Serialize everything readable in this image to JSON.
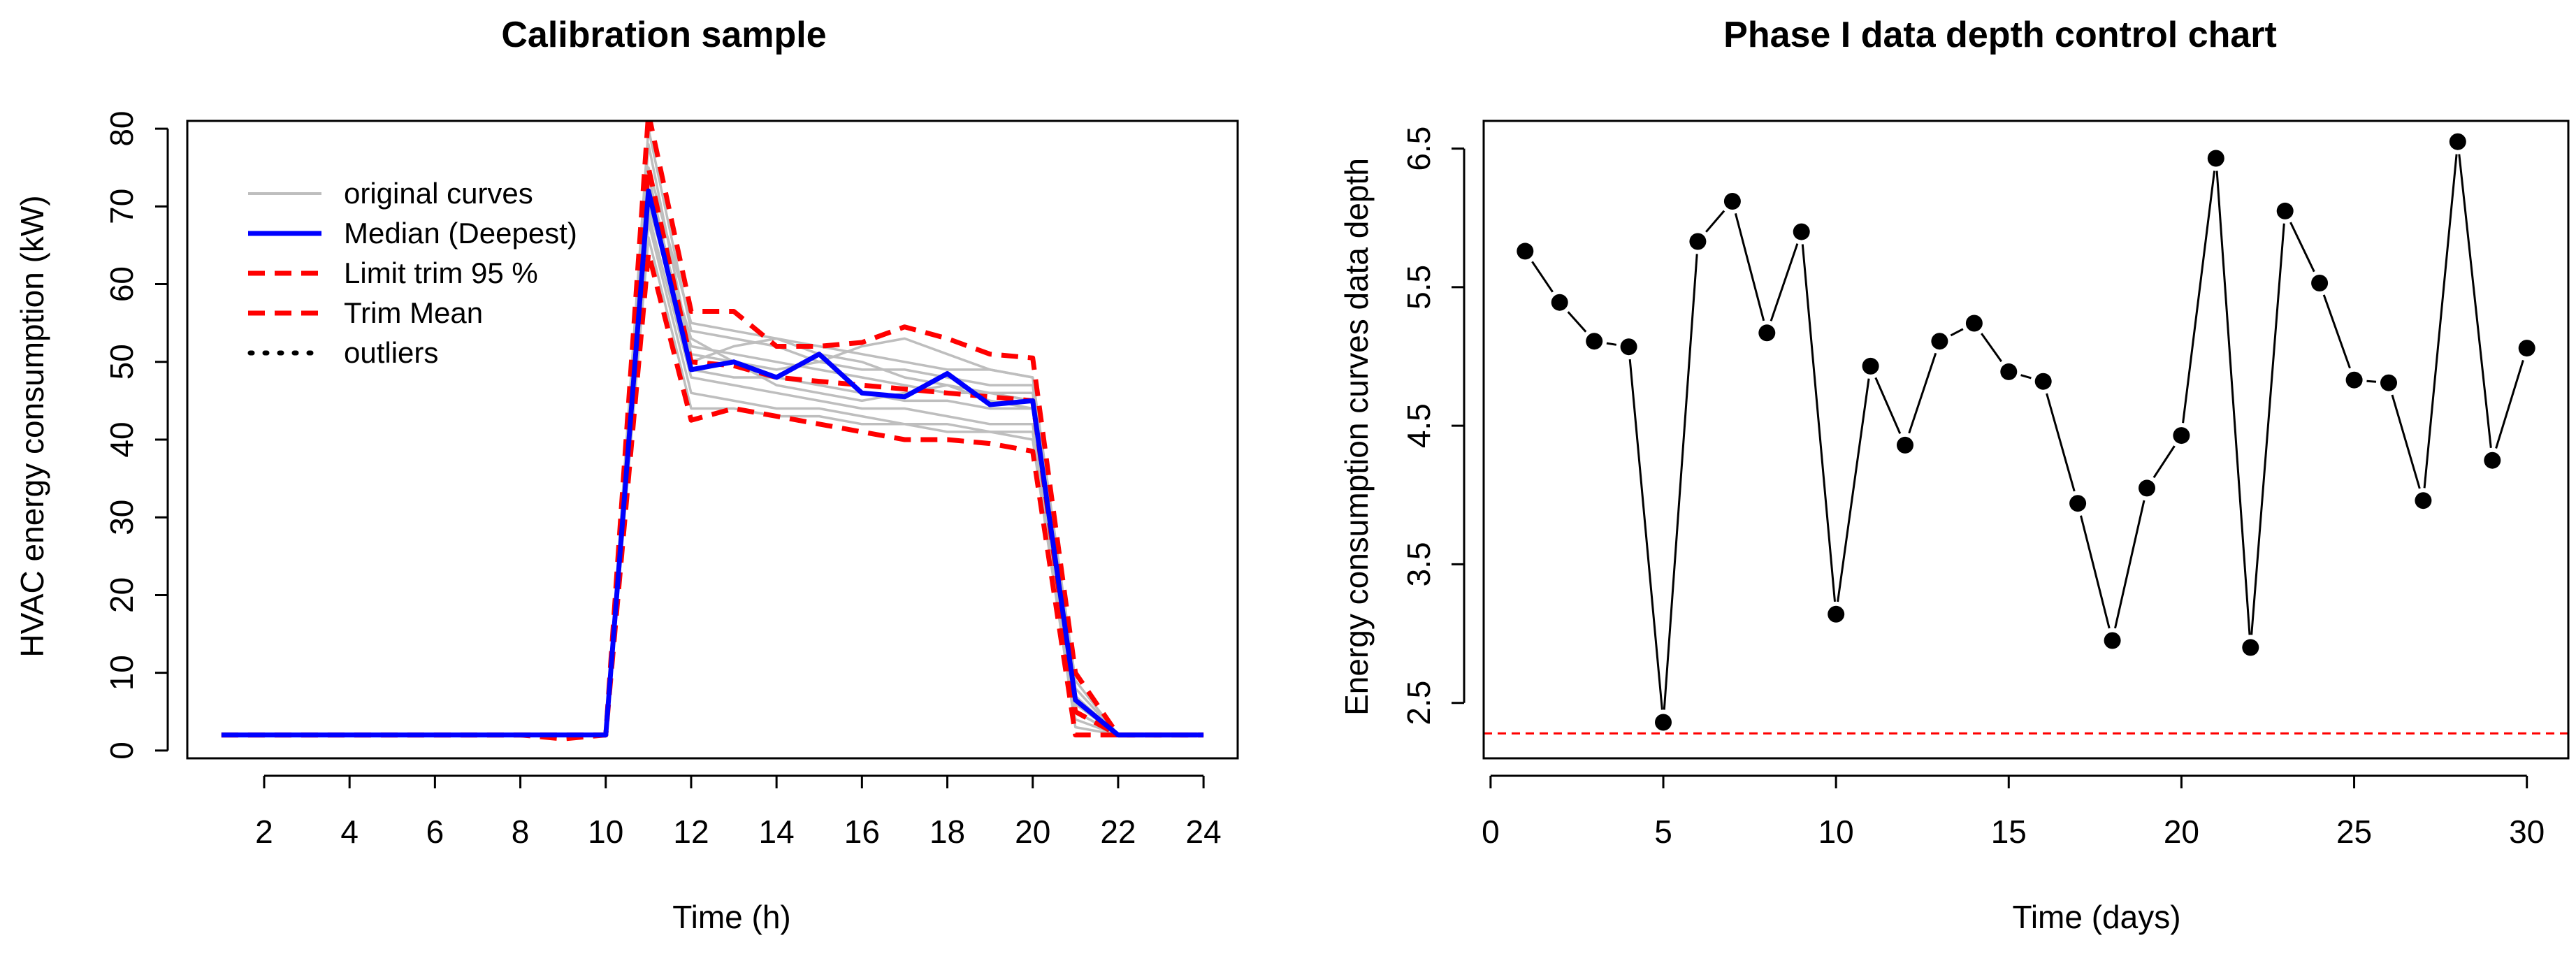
{
  "chart_data": [
    {
      "type": "line",
      "title": "Calibration sample",
      "xlabel": "Time (h)",
      "ylabel": "HVAC energy consumption (kW)",
      "xlim": [
        0.2,
        24.8
      ],
      "ylim": [
        -1,
        81
      ],
      "xticks": [
        2,
        4,
        6,
        8,
        10,
        12,
        14,
        16,
        18,
        20,
        22,
        24
      ],
      "yticks": [
        0,
        10,
        20,
        30,
        40,
        50,
        60,
        70,
        80
      ],
      "legend": {
        "placement": "top-left",
        "entries": [
          {
            "label": "original curves",
            "color": "#bebebe",
            "style": "solid"
          },
          {
            "label": "Median (Deepest)",
            "color": "#0000ff",
            "style": "solid"
          },
          {
            "label": "Limit trim 95 %",
            "color": "#ff0000",
            "style": "dashed"
          },
          {
            "label": "Trim Mean",
            "color": "#ff0000",
            "style": "dashed"
          },
          {
            "label": "outliers",
            "color": "#000000",
            "style": "dotted"
          }
        ]
      },
      "series": [
        {
          "name": "original curve",
          "color": "#bebebe",
          "x": [
            1,
            2,
            3,
            4,
            5,
            6,
            7,
            8,
            9,
            10,
            11,
            12,
            13,
            14,
            15,
            16,
            17,
            18,
            19,
            20,
            21,
            22,
            23,
            24
          ],
          "values": [
            2,
            2,
            2,
            2,
            2,
            2,
            2,
            2,
            2,
            2,
            70,
            52,
            51,
            50,
            49,
            48,
            47,
            46,
            46,
            45,
            5,
            2,
            2,
            2
          ]
        },
        {
          "name": "original curve",
          "color": "#bebebe",
          "x": [
            1,
            2,
            3,
            4,
            5,
            6,
            7,
            8,
            9,
            10,
            11,
            12,
            13,
            14,
            15,
            16,
            17,
            18,
            19,
            20,
            21,
            22,
            23,
            24
          ],
          "values": [
            2,
            2,
            2,
            2,
            2,
            2,
            2,
            2,
            2,
            2,
            75,
            55,
            54,
            53,
            52,
            51,
            50,
            49,
            49,
            48,
            7,
            2,
            2,
            2
          ]
        },
        {
          "name": "original curve",
          "color": "#bebebe",
          "x": [
            1,
            2,
            3,
            4,
            5,
            6,
            7,
            8,
            9,
            10,
            11,
            12,
            13,
            14,
            15,
            16,
            17,
            18,
            19,
            20,
            21,
            22,
            23,
            24
          ],
          "values": [
            2,
            2,
            2,
            2,
            2,
            2,
            2,
            2,
            2,
            2,
            68,
            46,
            45,
            44,
            44,
            43,
            42,
            42,
            41,
            41,
            4,
            2,
            2,
            2
          ]
        },
        {
          "name": "original curve",
          "color": "#bebebe",
          "x": [
            1,
            2,
            3,
            4,
            5,
            6,
            7,
            8,
            9,
            10,
            11,
            12,
            13,
            14,
            15,
            16,
            17,
            18,
            19,
            20,
            21,
            22,
            23,
            24
          ],
          "values": [
            2,
            2,
            2,
            2,
            2,
            2,
            2,
            2,
            2,
            2,
            80,
            54,
            53,
            52,
            50,
            49,
            49,
            48,
            47,
            47,
            8,
            2,
            2,
            2
          ]
        },
        {
          "name": "original curve",
          "color": "#bebebe",
          "x": [
            1,
            2,
            3,
            4,
            5,
            6,
            7,
            8,
            9,
            10,
            11,
            12,
            13,
            14,
            15,
            16,
            17,
            18,
            19,
            20,
            21,
            22,
            23,
            24
          ],
          "values": [
            2,
            2,
            2,
            2,
            2,
            2,
            2,
            2,
            2,
            2,
            72,
            49,
            48,
            48,
            47,
            46,
            45,
            45,
            44,
            44,
            6,
            2,
            2,
            2
          ]
        },
        {
          "name": "original curve",
          "color": "#bebebe",
          "x": [
            1,
            2,
            3,
            4,
            5,
            6,
            7,
            8,
            9,
            10,
            11,
            12,
            13,
            14,
            15,
            16,
            17,
            18,
            19,
            20,
            21,
            22,
            23,
            24
          ],
          "values": [
            2,
            2,
            2,
            2,
            2,
            2,
            2,
            2,
            2,
            2,
            74,
            50,
            52,
            53,
            51,
            50,
            48,
            47,
            46,
            46,
            5,
            2,
            2,
            2
          ]
        },
        {
          "name": "original curve",
          "color": "#bebebe",
          "x": [
            1,
            2,
            3,
            4,
            5,
            6,
            7,
            8,
            9,
            10,
            11,
            12,
            13,
            14,
            15,
            16,
            17,
            18,
            19,
            20,
            21,
            22,
            23,
            24
          ],
          "values": [
            2,
            2,
            2,
            2,
            2,
            2,
            2,
            2,
            2,
            2,
            66,
            44,
            44,
            43,
            43,
            42,
            42,
            41,
            41,
            40,
            3,
            2,
            2,
            2
          ]
        },
        {
          "name": "original curve",
          "color": "#bebebe",
          "x": [
            1,
            2,
            3,
            4,
            5,
            6,
            7,
            8,
            9,
            10,
            11,
            12,
            13,
            14,
            15,
            16,
            17,
            18,
            19,
            20,
            21,
            22,
            23,
            24
          ],
          "values": [
            2,
            2,
            2,
            2,
            2,
            2,
            2,
            2,
            2,
            2,
            78,
            51,
            50,
            49,
            50,
            52,
            53,
            51,
            49,
            48,
            9,
            2,
            2,
            2
          ]
        },
        {
          "name": "original curve",
          "color": "#bebebe",
          "x": [
            1,
            2,
            3,
            4,
            5,
            6,
            7,
            8,
            9,
            10,
            11,
            12,
            13,
            14,
            15,
            16,
            17,
            18,
            19,
            20,
            21,
            22,
            23,
            24
          ],
          "values": [
            2,
            2,
            2,
            2,
            2,
            2,
            2,
            2,
            2,
            2,
            71,
            53,
            50,
            47,
            46,
            45,
            46,
            47,
            45,
            44,
            6,
            2,
            2,
            2
          ]
        },
        {
          "name": "original curve",
          "color": "#bebebe",
          "x": [
            1,
            2,
            3,
            4,
            5,
            6,
            7,
            8,
            9,
            10,
            11,
            12,
            13,
            14,
            15,
            16,
            17,
            18,
            19,
            20,
            21,
            22,
            23,
            24
          ],
          "values": [
            2,
            2,
            2,
            2,
            2,
            2,
            2,
            2,
            2,
            2,
            69,
            48,
            47,
            46,
            45,
            44,
            44,
            43,
            42,
            42,
            5,
            2,
            2,
            2
          ]
        },
        {
          "name": "Median (Deepest)",
          "color": "#0000ff",
          "x": [
            1,
            2,
            3,
            4,
            5,
            6,
            7,
            8,
            9,
            10,
            11,
            12,
            13,
            14,
            15,
            16,
            17,
            18,
            19,
            20,
            21,
            22,
            23,
            24
          ],
          "values": [
            2,
            2,
            2,
            2,
            2,
            2,
            2,
            2,
            2,
            2,
            72,
            49,
            50,
            48,
            51,
            46,
            45.5,
            48.5,
            44.5,
            45,
            6.5,
            2,
            2,
            2
          ]
        },
        {
          "name": "Limit trim 95 % (upper)",
          "color": "#ff0000",
          "x": [
            1,
            2,
            3,
            4,
            5,
            6,
            7,
            8,
            9,
            10,
            11,
            12,
            13,
            14,
            15,
            16,
            17,
            18,
            19,
            20,
            21,
            22,
            23,
            24
          ],
          "values": [
            2,
            2,
            2,
            2,
            2,
            2,
            2,
            2,
            2,
            2,
            82,
            56.5,
            56.5,
            52,
            52,
            52.5,
            54.5,
            53,
            51,
            50.5,
            10,
            2,
            2,
            2
          ]
        },
        {
          "name": "Limit trim 95 % (lower)",
          "color": "#ff0000",
          "x": [
            1,
            2,
            3,
            4,
            5,
            6,
            7,
            8,
            9,
            10,
            11,
            12,
            13,
            14,
            15,
            16,
            17,
            18,
            19,
            20,
            21,
            22,
            23,
            24
          ],
          "values": [
            2,
            2,
            2,
            2,
            2,
            2,
            2,
            2,
            1.5,
            2,
            64,
            42.5,
            44,
            43,
            42,
            41,
            40,
            40,
            39.5,
            38.5,
            2,
            2,
            2,
            2
          ]
        },
        {
          "name": "Trim Mean",
          "color": "#ff0000",
          "x": [
            1,
            2,
            3,
            4,
            5,
            6,
            7,
            8,
            9,
            10,
            11,
            12,
            13,
            14,
            15,
            16,
            17,
            18,
            19,
            20,
            21,
            22,
            23,
            24
          ],
          "values": [
            2,
            2,
            2,
            2,
            2,
            2,
            2,
            2,
            2,
            2,
            75,
            50,
            49.5,
            48,
            47.5,
            47,
            46.5,
            46,
            45.5,
            45,
            5,
            2,
            2,
            2
          ]
        }
      ]
    },
    {
      "type": "line",
      "title": "Phase I data depth control chart",
      "xlabel": "Time (days)",
      "ylabel": "Energy consumption curves data depth",
      "xlim": [
        -0.2,
        31.2
      ],
      "ylim": [
        2.1,
        6.7
      ],
      "xticks": [
        0,
        5,
        10,
        15,
        20,
        25,
        30
      ],
      "yticks": [
        2.5,
        3.5,
        4.5,
        5.5,
        6.5
      ],
      "control_limit": {
        "value": 2.28,
        "color": "#ff0000",
        "style": "dashed"
      },
      "x": [
        1,
        2,
        3,
        4,
        5,
        6,
        7,
        8,
        9,
        10,
        11,
        12,
        13,
        14,
        15,
        16,
        17,
        18,
        19,
        20,
        21,
        22,
        23,
        24,
        25,
        26,
        27,
        28,
        29,
        30
      ],
      "values": [
        5.76,
        5.39,
        5.11,
        5.07,
        2.36,
        5.83,
        6.12,
        5.17,
        5.9,
        3.14,
        4.93,
        4.36,
        5.11,
        5.24,
        4.89,
        4.82,
        3.94,
        2.95,
        4.05,
        4.43,
        6.43,
        2.9,
        6.05,
        5.53,
        4.83,
        4.81,
        3.96,
        6.55,
        4.25,
        5.06
      ]
    }
  ]
}
